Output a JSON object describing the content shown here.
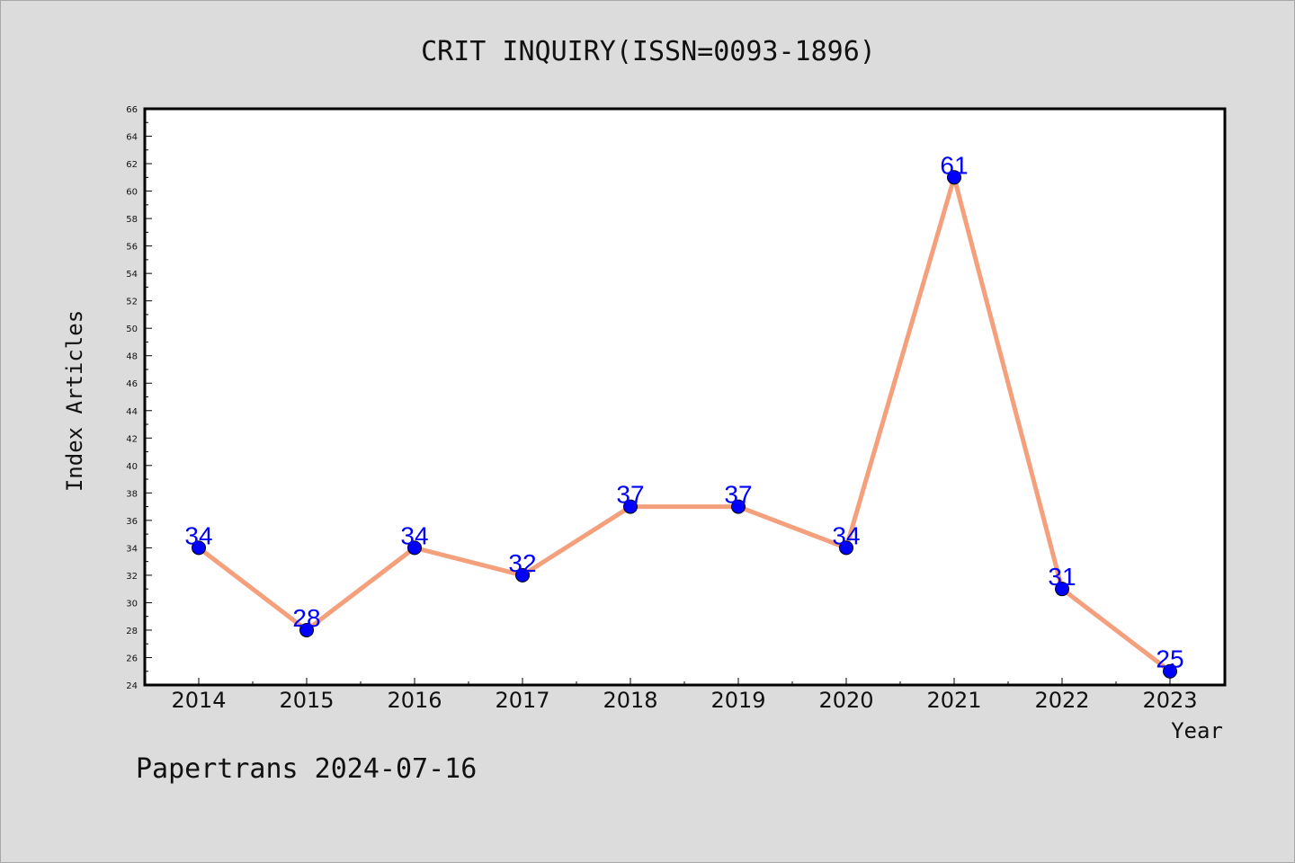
{
  "chart_data": {
    "type": "line",
    "title": "CRIT INQUIRY(ISSN=0093-1896)",
    "xlabel": "Year",
    "ylabel": "Index Articles",
    "x": [
      "2014",
      "2015",
      "2016",
      "2017",
      "2018",
      "2019",
      "2020",
      "2021",
      "2022",
      "2023"
    ],
    "series": [
      {
        "values": [
          34,
          28,
          34,
          32,
          37,
          37,
          34,
          61,
          31,
          25
        ]
      }
    ],
    "ylim": [
      24,
      66
    ],
    "yticks": [
      24,
      26,
      28,
      30,
      32,
      34,
      36,
      38,
      40,
      42,
      44,
      46,
      48,
      50,
      52,
      54,
      56,
      58,
      60,
      62,
      64,
      66
    ],
    "grid": false,
    "line_color": "#f4a07c",
    "marker_color": "#0000ff",
    "label_color": "#0000ff"
  },
  "footer": {
    "text": "Papertrans 2024-07-16"
  }
}
